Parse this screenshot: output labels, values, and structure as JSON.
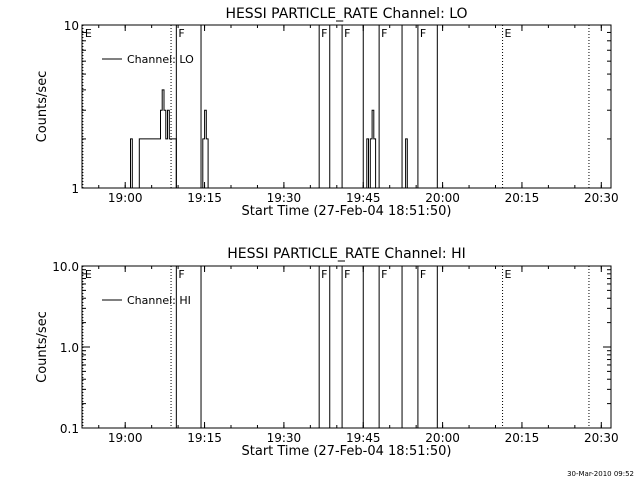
{
  "chart_data": [
    {
      "type": "line",
      "title": "HESSI PARTICLE_RATE Channel: LO",
      "xlabel": "Start Time (27-Feb-04 18:51:50)",
      "ylabel": "Counts/sec",
      "y_scale": "log",
      "ylim": [
        1,
        10
      ],
      "y_ticks": [
        {
          "value": 1,
          "label": "1"
        },
        {
          "value": 10,
          "label": "10"
        }
      ],
      "x_range": [
        "18:51:50",
        "20:31:50"
      ],
      "x_ticks": [
        "19:00",
        "19:15",
        "19:30",
        "19:45",
        "20:00",
        "20:15",
        "20:30"
      ],
      "legend": {
        "position": "top-left",
        "entries": [
          "Channel: LO"
        ]
      },
      "series": [
        {
          "name": "Channel: LO",
          "x": [
            "19:00:40",
            "19:01:00",
            "19:01:20",
            "19:02:00",
            "19:02:40",
            "19:03:20",
            "19:04:00",
            "19:05:20",
            "19:06:00",
            "19:06:40",
            "19:07:00",
            "19:07:20",
            "19:07:40",
            "19:08:00",
            "19:08:20",
            "19:09:00",
            "19:09:40",
            "19:10:00",
            "19:10:20",
            "19:14:20",
            "19:14:40",
            "19:15:00",
            "19:15:20",
            "19:15:40",
            "19:16:00",
            "19:45:20",
            "19:45:40",
            "19:46:00",
            "19:46:20",
            "19:46:40",
            "19:47:00",
            "19:47:20",
            "19:47:40",
            "19:52:40",
            "19:53:00",
            "19:53:20"
          ],
          "y": [
            1,
            2,
            1,
            1,
            2,
            2,
            2,
            2,
            2,
            3,
            4,
            3,
            2,
            3,
            2,
            2,
            1,
            1,
            1,
            1,
            2,
            3,
            2,
            1,
            1,
            1,
            2,
            1,
            2,
            3,
            2,
            1,
            1,
            1,
            2,
            1
          ]
        }
      ],
      "markers": [
        {
          "time": "18:52:00",
          "label": "E",
          "style": "dotted"
        },
        {
          "time": "19:08:40",
          "label": "",
          "style": "dotted"
        },
        {
          "time": "19:09:40",
          "label": "F",
          "style": "solid"
        },
        {
          "time": "19:14:20",
          "label": "",
          "style": "solid"
        },
        {
          "time": "19:36:40",
          "label": "F",
          "style": "solid"
        },
        {
          "time": "19:38:40",
          "label": "",
          "style": "solid"
        },
        {
          "time": "19:41:00",
          "label": "F",
          "style": "solid"
        },
        {
          "time": "19:45:00",
          "label": "",
          "style": "solid"
        },
        {
          "time": "19:48:00",
          "label": "F",
          "style": "solid"
        },
        {
          "time": "19:52:20",
          "label": "",
          "style": "solid"
        },
        {
          "time": "19:55:20",
          "label": "F",
          "style": "solid"
        },
        {
          "time": "19:59:00",
          "label": "",
          "style": "solid"
        },
        {
          "time": "20:11:20",
          "label": "E",
          "style": "dotted"
        },
        {
          "time": "20:27:40",
          "label": "",
          "style": "dotted"
        }
      ]
    },
    {
      "type": "line",
      "title": "HESSI PARTICLE_RATE Channel: HI",
      "xlabel": "Start Time (27-Feb-04 18:51:50)",
      "ylabel": "Counts/sec",
      "y_scale": "log",
      "ylim": [
        0.1,
        10
      ],
      "y_ticks": [
        {
          "value": 0.1,
          "label": "0.1"
        },
        {
          "value": 1,
          "label": "1.0"
        },
        {
          "value": 10,
          "label": "10.0"
        }
      ],
      "x_range": [
        "18:51:50",
        "20:31:50"
      ],
      "x_ticks": [
        "19:00",
        "19:15",
        "19:30",
        "19:45",
        "20:00",
        "20:15",
        "20:30"
      ],
      "legend": {
        "position": "top-left",
        "entries": [
          "Channel: HI"
        ]
      },
      "series": [
        {
          "name": "Channel: HI",
          "x": [],
          "y": []
        }
      ],
      "markers": [
        {
          "time": "18:52:00",
          "label": "E",
          "style": "dotted"
        },
        {
          "time": "19:08:40",
          "label": "",
          "style": "dotted"
        },
        {
          "time": "19:09:40",
          "label": "F",
          "style": "solid"
        },
        {
          "time": "19:14:20",
          "label": "",
          "style": "solid"
        },
        {
          "time": "19:36:40",
          "label": "F",
          "style": "solid"
        },
        {
          "time": "19:38:40",
          "label": "",
          "style": "solid"
        },
        {
          "time": "19:41:00",
          "label": "F",
          "style": "solid"
        },
        {
          "time": "19:45:00",
          "label": "",
          "style": "solid"
        },
        {
          "time": "19:48:00",
          "label": "F",
          "style": "solid"
        },
        {
          "time": "19:52:20",
          "label": "",
          "style": "solid"
        },
        {
          "time": "19:55:20",
          "label": "F",
          "style": "solid"
        },
        {
          "time": "19:59:00",
          "label": "",
          "style": "solid"
        },
        {
          "time": "20:11:20",
          "label": "E",
          "style": "dotted"
        },
        {
          "time": "20:27:40",
          "label": "",
          "style": "dotted"
        }
      ]
    }
  ],
  "footer": {
    "date": "30-Mar-2010 09:52"
  }
}
